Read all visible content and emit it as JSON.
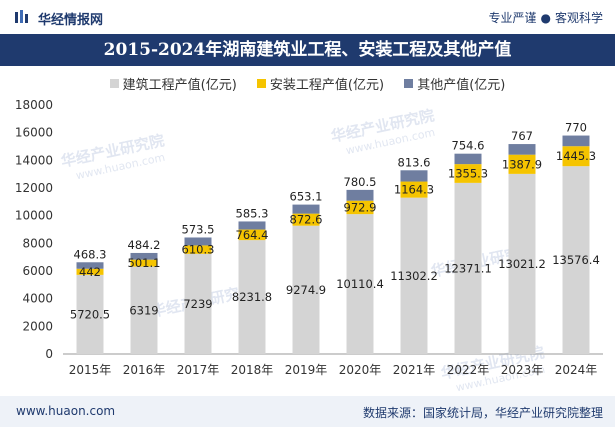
{
  "header": {
    "brand": "华经情报网",
    "slogan_left": "专业严谨",
    "slogan_dot": "●",
    "slogan_right": "客观科学"
  },
  "watermark": {
    "text": "华经产业研究院",
    "url": "www.huaon.com"
  },
  "footer": {
    "website": "www.huaon.com",
    "source": "数据来源：国家统计局，华经产业研究院整理"
  },
  "colors": {
    "construction": "#d4d4d4",
    "installation": "#f5c400",
    "other": "#6f7ea0",
    "brand": "#1f3a6e"
  },
  "chart_data": {
    "type": "bar",
    "stacked": true,
    "title": "2015-2024年湖南建筑业工程、安装工程及其他产值",
    "xlabel": "",
    "ylabel": "",
    "ylim": [
      0,
      18000
    ],
    "yticks": [
      0,
      2000,
      4000,
      6000,
      8000,
      10000,
      12000,
      14000,
      16000,
      18000
    ],
    "legend_position": "top",
    "categories": [
      "2015年",
      "2016年",
      "2017年",
      "2018年",
      "2019年",
      "2020年",
      "2021年",
      "2022年",
      "2023年",
      "2024年"
    ],
    "series": [
      {
        "name": "建筑工程产值(亿元)",
        "values": [
          5720.5,
          6319,
          7239,
          8231.8,
          9274.9,
          10110.4,
          11302.2,
          12371.1,
          13021.2,
          13576.4
        ],
        "labels": [
          "5720.5",
          "6319",
          "7239",
          "8231.8",
          "9274.9",
          "10110.4",
          "11302.2",
          "12371.1",
          "13021.2",
          "13576.4"
        ]
      },
      {
        "name": "安装工程产值(亿元)",
        "values": [
          442,
          501.1,
          610.3,
          764.4,
          872.6,
          972.9,
          1164.3,
          1355.3,
          1387.9,
          1445.3
        ],
        "labels": [
          "442",
          "501.1",
          "610.3",
          "764.4",
          "872.6",
          "972.9",
          "1164.3",
          "1355.3",
          "1387.9",
          "1445.3"
        ]
      },
      {
        "name": "其他产值(亿元)",
        "values": [
          468.3,
          484.2,
          573.5,
          585.3,
          653.1,
          780.5,
          813.6,
          754.6,
          767,
          770
        ],
        "labels": [
          "468.3",
          "484.2",
          "573.5",
          "585.3",
          "653.1",
          "780.5",
          "813.6",
          "754.6",
          "767",
          "770"
        ]
      }
    ]
  }
}
